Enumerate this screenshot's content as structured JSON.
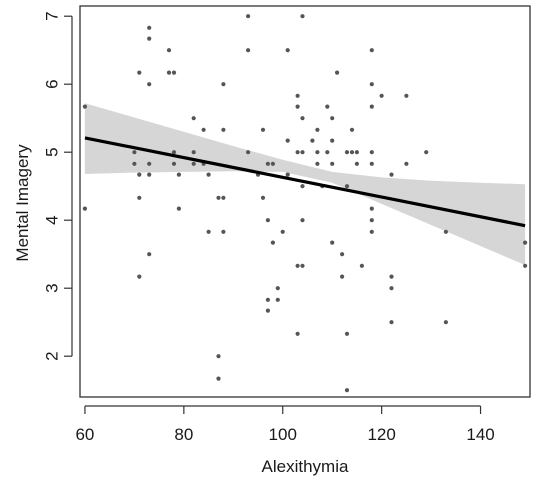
{
  "chart_data": {
    "type": "scatter",
    "xlabel": "Alexithymia",
    "ylabel": "Mental Imagery",
    "xlim": [
      59,
      150
    ],
    "ylim": [
      1.4,
      7.15
    ],
    "x_ticks": [
      60,
      80,
      100,
      120,
      140
    ],
    "y_ticks": [
      2,
      3,
      4,
      5,
      6,
      7
    ],
    "grid": false,
    "legend": "none",
    "points": [
      [
        60,
        5.67
      ],
      [
        60,
        4.17
      ],
      [
        70,
        5.0
      ],
      [
        70,
        4.83
      ],
      [
        71,
        6.17
      ],
      [
        71,
        4.67
      ],
      [
        71,
        4.33
      ],
      [
        71,
        3.17
      ],
      [
        73,
        6.83
      ],
      [
        73,
        6.67
      ],
      [
        73,
        6.0
      ],
      [
        73,
        4.83
      ],
      [
        73,
        4.67
      ],
      [
        73,
        3.5
      ],
      [
        77,
        6.5
      ],
      [
        77,
        6.17
      ],
      [
        78,
        6.17
      ],
      [
        78,
        5.0
      ],
      [
        78,
        4.83
      ],
      [
        79,
        4.67
      ],
      [
        79,
        4.17
      ],
      [
        82,
        5.5
      ],
      [
        82,
        5.0
      ],
      [
        82,
        4.83
      ],
      [
        84,
        5.33
      ],
      [
        84,
        4.83
      ],
      [
        85,
        4.67
      ],
      [
        85,
        3.83
      ],
      [
        87,
        4.33
      ],
      [
        87,
        2.0
      ],
      [
        87,
        1.67
      ],
      [
        88,
        6.0
      ],
      [
        88,
        5.33
      ],
      [
        88,
        4.33
      ],
      [
        88,
        3.83
      ],
      [
        93,
        7.0
      ],
      [
        93,
        6.5
      ],
      [
        93,
        5.0
      ],
      [
        95,
        4.67
      ],
      [
        96,
        5.33
      ],
      [
        96,
        4.33
      ],
      [
        97,
        4.83
      ],
      [
        97,
        4.0
      ],
      [
        97,
        2.83
      ],
      [
        97,
        2.67
      ],
      [
        98,
        4.83
      ],
      [
        98,
        3.67
      ],
      [
        99,
        3.0
      ],
      [
        99,
        2.83
      ],
      [
        100,
        3.83
      ],
      [
        101,
        6.5
      ],
      [
        101,
        5.17
      ],
      [
        101,
        4.67
      ],
      [
        103,
        5.83
      ],
      [
        103,
        5.67
      ],
      [
        103,
        5.0
      ],
      [
        103,
        3.33
      ],
      [
        103,
        2.33
      ],
      [
        104,
        7.0
      ],
      [
        104,
        5.5
      ],
      [
        104,
        5.0
      ],
      [
        104,
        4.5
      ],
      [
        104,
        4.0
      ],
      [
        104,
        3.33
      ],
      [
        106,
        5.17
      ],
      [
        107,
        5.33
      ],
      [
        107,
        5.0
      ],
      [
        107,
        4.83
      ],
      [
        108,
        4.5
      ],
      [
        109,
        5.67
      ],
      [
        109,
        5.0
      ],
      [
        110,
        5.5
      ],
      [
        110,
        5.17
      ],
      [
        110,
        4.83
      ],
      [
        110,
        3.67
      ],
      [
        111,
        6.17
      ],
      [
        112,
        3.5
      ],
      [
        112,
        3.17
      ],
      [
        113,
        5.0
      ],
      [
        113,
        4.5
      ],
      [
        113,
        2.33
      ],
      [
        113,
        1.5
      ],
      [
        114,
        5.33
      ],
      [
        114,
        5.0
      ],
      [
        115,
        5.0
      ],
      [
        115,
        4.83
      ],
      [
        116,
        3.33
      ],
      [
        118,
        6.5
      ],
      [
        118,
        6.0
      ],
      [
        118,
        5.67
      ],
      [
        118,
        5.0
      ],
      [
        118,
        4.83
      ],
      [
        118,
        4.17
      ],
      [
        118,
        4.0
      ],
      [
        118,
        3.83
      ],
      [
        120,
        5.83
      ],
      [
        122,
        4.67
      ],
      [
        122,
        3.17
      ],
      [
        122,
        3.0
      ],
      [
        122,
        2.5
      ],
      [
        125,
        5.83
      ],
      [
        125,
        4.83
      ],
      [
        129,
        5.0
      ],
      [
        133,
        3.83
      ],
      [
        133,
        2.5
      ],
      [
        149,
        3.67
      ],
      [
        149,
        3.33
      ]
    ],
    "regression": {
      "x": [
        60,
        149
      ],
      "y": [
        5.21,
        3.92
      ]
    },
    "confidence_band": {
      "x": [
        60,
        70,
        80,
        90,
        100,
        110,
        120,
        130,
        140,
        149
      ],
      "upper": [
        5.72,
        5.51,
        5.3,
        5.09,
        4.89,
        4.71,
        4.63,
        4.58,
        4.55,
        4.53
      ],
      "lower": [
        4.68,
        4.7,
        4.71,
        4.72,
        4.71,
        4.55,
        4.24,
        3.93,
        3.62,
        3.34
      ]
    },
    "colors": {
      "points": "#555555",
      "line": "#000000",
      "band": "#d6d6d6",
      "axes": "#333333"
    }
  }
}
